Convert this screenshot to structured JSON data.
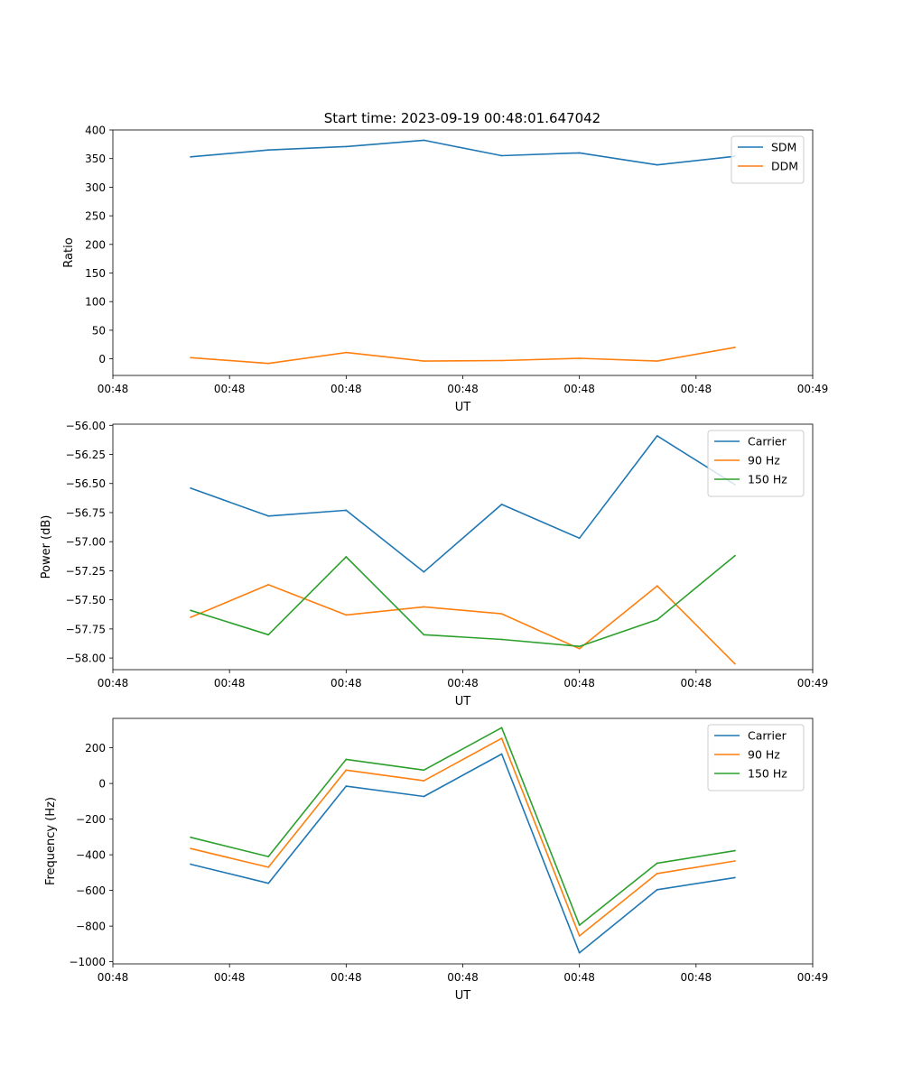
{
  "figure_title": "Start time: 2023-09-19 00:48:01.647042",
  "colors": {
    "blue": "#1f77b4",
    "orange": "#ff7f0e",
    "green": "#2ca02c"
  },
  "chart_data": [
    {
      "type": "line",
      "title": "Start time: 2023-09-19 00:48:01.647042",
      "xlabel": "UT",
      "ylabel": "Ratio",
      "xlim": [
        -1.0,
        8.0
      ],
      "x": [
        0,
        1,
        2,
        3,
        4,
        5,
        6,
        7
      ],
      "xticks": [
        -1.0,
        0.5,
        2.0,
        3.5,
        5.0,
        6.5,
        8.0
      ],
      "xticklabels": [
        "00:48",
        "00:48",
        "00:48",
        "00:48",
        "00:48",
        "00:48",
        "00:49"
      ],
      "ylim": [
        -29,
        400
      ],
      "yticks": [
        0,
        50,
        100,
        150,
        200,
        250,
        300,
        350,
        400
      ],
      "yticklabels": [
        "0",
        "50",
        "100",
        "150",
        "200",
        "250",
        "300",
        "350",
        "400"
      ],
      "legend_loc": "top-right",
      "series": [
        {
          "name": "SDM",
          "color": "#1f77b4",
          "values": [
            353,
            365,
            371,
            382,
            355,
            360,
            339,
            354
          ]
        },
        {
          "name": "DDM",
          "color": "#ff7f0e",
          "values": [
            2,
            -8,
            11,
            -4,
            -3,
            1,
            -4,
            20
          ]
        }
      ]
    },
    {
      "type": "line",
      "title": "",
      "xlabel": "UT",
      "ylabel": "Power (dB)",
      "xlim": [
        -1.0,
        8.0
      ],
      "x": [
        0,
        1,
        2,
        3,
        4,
        5,
        6,
        7
      ],
      "xticks": [
        -1.0,
        0.5,
        2.0,
        3.5,
        5.0,
        6.5,
        8.0
      ],
      "xticklabels": [
        "00:48",
        "00:48",
        "00:48",
        "00:48",
        "00:48",
        "00:48",
        "00:49"
      ],
      "ylim": [
        -58.1,
        -55.99
      ],
      "yticks": [
        -58.0,
        -57.75,
        -57.5,
        -57.25,
        -57.0,
        -56.75,
        -56.5,
        -56.25,
        -56.0
      ],
      "yticklabels": [
        "−58.00",
        "−57.75",
        "−57.50",
        "−57.25",
        "−57.00",
        "−56.75",
        "−56.50",
        "−56.25",
        "−56.00"
      ],
      "legend_loc": "top-right",
      "series": [
        {
          "name": "Carrier",
          "color": "#1f77b4",
          "values": [
            -56.54,
            -56.78,
            -56.73,
            -57.26,
            -56.68,
            -56.97,
            -56.09,
            -56.51
          ]
        },
        {
          "name": "90 Hz",
          "color": "#ff7f0e",
          "values": [
            -57.65,
            -57.37,
            -57.63,
            -57.56,
            -57.62,
            -57.92,
            -57.38,
            -58.05
          ]
        },
        {
          "name": "150 Hz",
          "color": "#2ca02c",
          "values": [
            -57.59,
            -57.8,
            -57.13,
            -57.8,
            -57.84,
            -57.9,
            -57.67,
            -57.12
          ]
        }
      ]
    },
    {
      "type": "line",
      "title": "",
      "xlabel": "UT",
      "ylabel": "Frequency (Hz)",
      "xlim": [
        -1.0,
        8.0
      ],
      "x": [
        0,
        1,
        2,
        3,
        4,
        5,
        6,
        7
      ],
      "xticks": [
        -1.0,
        0.5,
        2.0,
        3.5,
        5.0,
        6.5,
        8.0
      ],
      "xticklabels": [
        "00:48",
        "00:48",
        "00:48",
        "00:48",
        "00:48",
        "00:48",
        "00:49"
      ],
      "ylim": [
        -1012,
        365
      ],
      "yticks": [
        -1000,
        -800,
        -600,
        -400,
        -200,
        0,
        200
      ],
      "yticklabels": [
        "−1000",
        "−800",
        "−600",
        "−400",
        "−200",
        "0",
        "200"
      ],
      "legend_loc": "top-right",
      "series": [
        {
          "name": "Carrier",
          "color": "#1f77b4",
          "values": [
            -453,
            -560,
            -15,
            -73,
            165,
            -950,
            -596,
            -528
          ]
        },
        {
          "name": "90 Hz",
          "color": "#ff7f0e",
          "values": [
            -365,
            -470,
            75,
            15,
            253,
            -855,
            -505,
            -435
          ]
        },
        {
          "name": "150 Hz",
          "color": "#2ca02c",
          "values": [
            -302,
            -410,
            135,
            75,
            313,
            -795,
            -447,
            -377
          ]
        }
      ]
    }
  ]
}
